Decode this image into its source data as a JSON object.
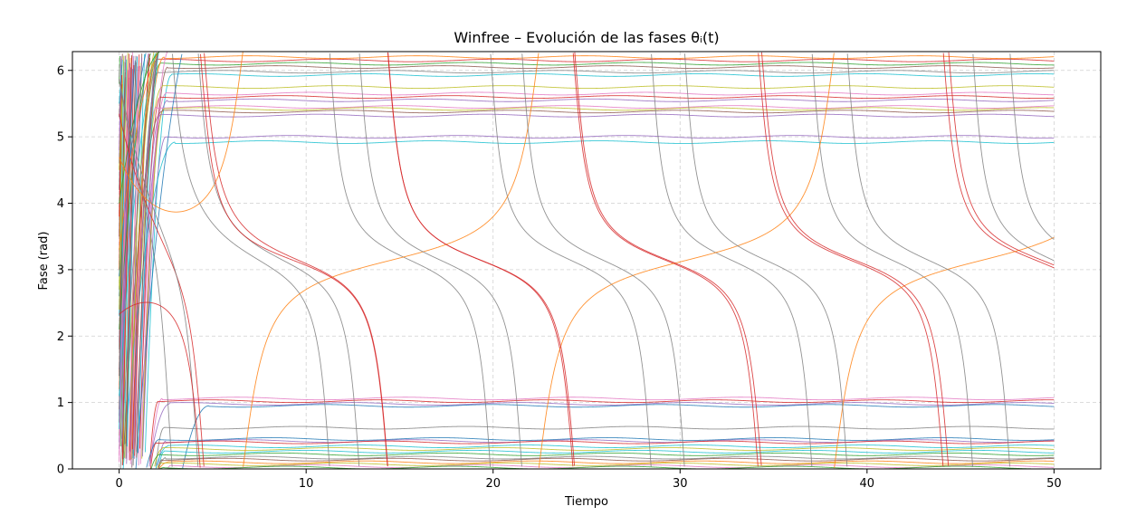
{
  "chart_data": {
    "type": "line",
    "title": "Winfree – Evolución de las fases θᵢ(t)",
    "xlabel": "Tiempo",
    "ylabel": "Fase (rad)",
    "xlim": [
      -2.5,
      52.5
    ],
    "ylim": [
      0,
      6.283
    ],
    "xticks": [
      0,
      10,
      20,
      30,
      40,
      50
    ],
    "yticks": [
      0,
      1,
      2,
      3,
      4,
      5,
      6
    ],
    "grid": true,
    "grid_style": "dashed",
    "legend": "none",
    "colors": [
      "#1f77b4",
      "#ff7f0e",
      "#2ca02c",
      "#d62728",
      "#9467bd",
      "#8c564b",
      "#e377c2",
      "#7f7f7f",
      "#bcbd22",
      "#17becf"
    ],
    "locked_series": [
      {
        "color": "#d62728",
        "start": 0.9,
        "settle": 2.0,
        "value": 6.15
      },
      {
        "color": "#2ca02c",
        "start": 5.8,
        "settle": 2.2,
        "value": 6.1
      },
      {
        "color": "#8c564b",
        "start": 3.5,
        "settle": 2.6,
        "value": 6.05
      },
      {
        "color": "#ff7f0e",
        "start": 1.2,
        "settle": 2.4,
        "value": 6.2
      },
      {
        "color": "#7f7f7f",
        "start": 4.2,
        "settle": 2.1,
        "value": 5.98
      },
      {
        "color": "#17becf",
        "start": 2.3,
        "settle": 2.8,
        "value": 5.93
      },
      {
        "color": "#bcbd22",
        "start": 0.5,
        "settle": 2.3,
        "value": 5.75
      },
      {
        "color": "#e377c2",
        "start": 1.9,
        "settle": 2.5,
        "value": 5.65
      },
      {
        "color": "#d62728",
        "start": 3.0,
        "settle": 2.2,
        "value": 5.6
      },
      {
        "color": "#9467bd",
        "start": 0.3,
        "settle": 2.6,
        "value": 5.55
      },
      {
        "color": "#e377c2",
        "start": 4.8,
        "settle": 2.0,
        "value": 5.45
      },
      {
        "color": "#bcbd22",
        "start": 2.7,
        "settle": 2.4,
        "value": 5.42
      },
      {
        "color": "#8c564b",
        "start": 5.3,
        "settle": 2.3,
        "value": 5.38
      },
      {
        "color": "#9467bd",
        "start": 0.8,
        "settle": 2.2,
        "value": 5.32
      },
      {
        "color": "#9467bd",
        "start": 4.6,
        "settle": 2.5,
        "value": 5.0
      },
      {
        "color": "#17becf",
        "start": 5.5,
        "settle": 3.0,
        "value": 4.92
      },
      {
        "color": "#e377c2",
        "start": 0.2,
        "settle": 2.3,
        "value": 1.06
      },
      {
        "color": "#d62728",
        "start": 0.7,
        "settle": 2.1,
        "value": 1.02
      },
      {
        "color": "#9467bd",
        "start": 1.5,
        "settle": 2.7,
        "value": 0.98
      },
      {
        "color": "#1f77b4",
        "start": 2.6,
        "settle": 4.8,
        "value": 0.95
      },
      {
        "color": "#7f7f7f",
        "start": 1.8,
        "settle": 2.4,
        "value": 0.62
      },
      {
        "color": "#1f77b4",
        "start": 2.9,
        "settle": 2.2,
        "value": 0.45
      },
      {
        "color": "#9467bd",
        "start": 0.4,
        "settle": 2.5,
        "value": 0.42
      },
      {
        "color": "#d62728",
        "start": 3.8,
        "settle": 2.0,
        "value": 0.4
      },
      {
        "color": "#17becf",
        "start": 1.1,
        "settle": 2.6,
        "value": 0.34
      },
      {
        "color": "#bcbd22",
        "start": 4.5,
        "settle": 2.3,
        "value": 0.3
      },
      {
        "color": "#17becf",
        "start": 0.6,
        "settle": 2.4,
        "value": 0.26
      },
      {
        "color": "#2ca02c",
        "start": 2.1,
        "settle": 2.2,
        "value": 0.22
      },
      {
        "color": "#7f7f7f",
        "start": 5.9,
        "settle": 2.5,
        "value": 0.17
      },
      {
        "color": "#8c564b",
        "start": 1.4,
        "settle": 2.3,
        "value": 0.14
      },
      {
        "color": "#ff7f0e",
        "start": 3.3,
        "settle": 2.6,
        "value": 0.1
      },
      {
        "color": "#bcbd22",
        "start": 2.4,
        "settle": 2.2,
        "value": 0.07
      },
      {
        "color": "#e377c2",
        "start": 0.1,
        "settle": 2.7,
        "value": 0.04
      },
      {
        "color": "#2ca02c",
        "start": 4.0,
        "settle": 2.4,
        "value": 0.02
      }
    ],
    "drifting_series": [
      {
        "color": "#d62728",
        "start": 5.4,
        "period": 9.9,
        "direction": -1,
        "phase_offset": 0.3
      },
      {
        "color": "#7f7f7f",
        "start": 6.1,
        "period": 8.6,
        "direction": -1,
        "phase_offset": 1.2
      },
      {
        "color": "#ff7f0e",
        "start": 4.6,
        "period": 15.8,
        "direction": 1,
        "phase_offset": 0.5
      },
      {
        "color": "#7f7f7f",
        "start": 5.9,
        "period": 8.7,
        "direction": -1,
        "phase_offset": 0.15
      },
      {
        "color": "#d62728",
        "start": 2.4,
        "period": 10.0,
        "direction": -1,
        "phase_offset": 0.4
      }
    ],
    "transient_end": 3.0
  }
}
